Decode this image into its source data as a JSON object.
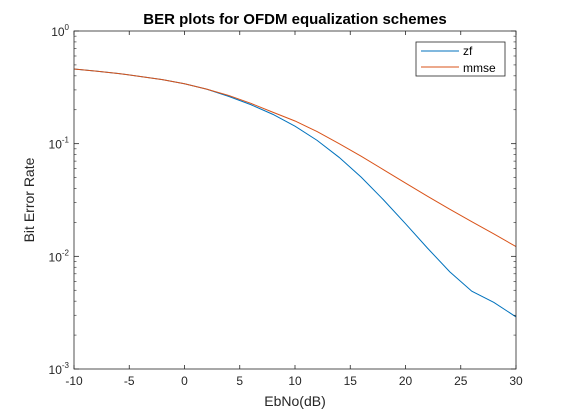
{
  "chart_data": {
    "type": "line",
    "title": "BER plots for OFDM equalization schemes",
    "xlabel": "EbNo(dB)",
    "ylabel": "Bit Error Rate",
    "xlim": [
      -10,
      30
    ],
    "ylim": [
      0.001,
      1
    ],
    "yscale": "log",
    "grid": false,
    "legend_position": "top-right",
    "x_ticks": [
      "-10",
      "-5",
      "0",
      "5",
      "10",
      "15",
      "20",
      "25",
      "30"
    ],
    "y_ticks": [
      {
        "base": "10",
        "exp": "0",
        "value": 1
      },
      {
        "base": "10",
        "exp": "-1",
        "value": 0.1
      },
      {
        "base": "10",
        "exp": "-2",
        "value": 0.01
      },
      {
        "base": "10",
        "exp": "-3",
        "value": 0.001
      }
    ],
    "x": [
      -10,
      -8,
      -6,
      -4,
      -2,
      0,
      2,
      4,
      6,
      8,
      10,
      12,
      14,
      16,
      18,
      20,
      22,
      24,
      26,
      28,
      30
    ],
    "series": [
      {
        "name": "zf",
        "color": "#0072BD",
        "values": [
          0.46,
          0.44,
          0.42,
          0.395,
          0.37,
          0.34,
          0.305,
          0.263,
          0.222,
          0.182,
          0.143,
          0.107,
          0.0755,
          0.0503,
          0.0318,
          0.0195,
          0.0118,
          0.0073,
          0.0049,
          0.0039,
          0.0029
        ]
      },
      {
        "name": "mmse",
        "color": "#D95319",
        "values": [
          0.46,
          0.44,
          0.42,
          0.395,
          0.37,
          0.34,
          0.305,
          0.268,
          0.228,
          0.19,
          0.159,
          0.128,
          0.1,
          0.0773,
          0.0588,
          0.0447,
          0.0341,
          0.0262,
          0.0203,
          0.0158,
          0.0122
        ]
      }
    ]
  }
}
